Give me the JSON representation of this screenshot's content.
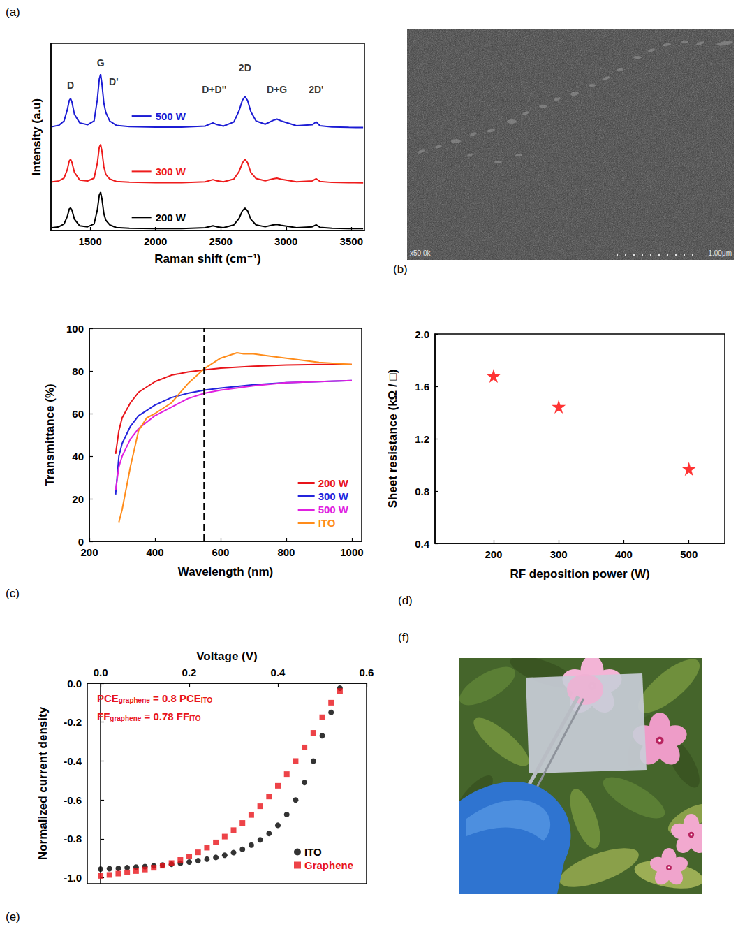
{
  "chart_data": [
    {
      "panel": "(a)",
      "type": "line",
      "x_label": "Raman shift (cm⁻¹)",
      "y_label": "Intensity (a.u)",
      "x": [
        1210,
        1260,
        1300,
        1325,
        1340,
        1350,
        1360,
        1380,
        1420,
        1480,
        1530,
        1555,
        1570,
        1580,
        1590,
        1605,
        1620,
        1650,
        1700,
        1800,
        2000,
        2200,
        2380,
        2440,
        2470,
        2520,
        2600,
        2640,
        2665,
        2685,
        2705,
        2730,
        2770,
        2840,
        2900,
        2930,
        2960,
        3080,
        3200,
        3230,
        3260,
        3350,
        3480,
        3590
      ],
      "series": [
        {
          "name": "200 W",
          "color": "#000000",
          "values": [
            0.15,
            0.2,
            0.35,
            0.75,
            1.15,
            1.2,
            1.1,
            0.6,
            0.25,
            0.2,
            0.35,
            1.1,
            1.9,
            2.05,
            1.7,
            0.9,
            0.55,
            0.3,
            0.16,
            0.12,
            0.1,
            0.1,
            0.15,
            0.25,
            0.2,
            0.15,
            0.3,
            0.65,
            1.05,
            1.2,
            1.05,
            0.6,
            0.3,
            0.2,
            0.3,
            0.33,
            0.28,
            0.15,
            0.2,
            0.3,
            0.17,
            0.12,
            0.1,
            0.1
          ]
        },
        {
          "name": "300 W",
          "color": "#ee1c1c",
          "values": [
            2.6,
            2.65,
            2.8,
            3.25,
            3.72,
            3.8,
            3.65,
            3.1,
            2.7,
            2.65,
            2.8,
            3.6,
            4.45,
            4.6,
            4.25,
            3.4,
            3.0,
            2.75,
            2.62,
            2.58,
            2.56,
            2.56,
            2.6,
            2.72,
            2.66,
            2.6,
            2.75,
            3.15,
            3.6,
            3.8,
            3.62,
            3.1,
            2.78,
            2.66,
            2.76,
            2.8,
            2.74,
            2.6,
            2.65,
            2.77,
            2.62,
            2.57,
            2.56,
            2.55
          ]
        },
        {
          "name": "500 W",
          "color": "#1c1cd4",
          "values": [
            5.55,
            5.62,
            5.85,
            6.45,
            6.95,
            7.05,
            6.88,
            6.2,
            5.75,
            5.65,
            5.85,
            7.0,
            8.1,
            8.35,
            7.85,
            6.8,
            6.3,
            5.85,
            5.62,
            5.55,
            5.52,
            5.52,
            5.58,
            5.75,
            5.66,
            5.58,
            5.8,
            6.4,
            6.95,
            7.15,
            6.95,
            6.35,
            5.85,
            5.68,
            5.88,
            5.95,
            5.86,
            5.6,
            5.65,
            5.8,
            5.6,
            5.53,
            5.51,
            5.5
          ]
        }
      ],
      "xlim": [
        1200,
        3600
      ],
      "xticks": [
        1500,
        2000,
        2500,
        3000,
        3500
      ],
      "ylim": [
        0,
        10
      ],
      "tick_labels": "x",
      "grid": false,
      "annotations": [
        {
          "text": "D",
          "x": 1350,
          "y": 7.75
        },
        {
          "text": "G",
          "x": 1580,
          "y": 8.95
        },
        {
          "text": "D'",
          "x": 1680,
          "y": 7.95
        },
        {
          "text": "D+D''",
          "x": 2450,
          "y": 7.55
        },
        {
          "text": "2D",
          "x": 2685,
          "y": 8.7
        },
        {
          "text": "D+G",
          "x": 2930,
          "y": 7.55
        },
        {
          "text": "2D'",
          "x": 3230,
          "y": 7.55
        }
      ]
    },
    {
      "panel": "(b)",
      "type": "image",
      "annotations": [
        "x50.0k",
        "1.00μm"
      ]
    },
    {
      "panel": "(c)",
      "type": "line",
      "x_label": "Wavelength (nm)",
      "y_label": "Transmittance (%)",
      "series": [
        {
          "name": "200 W",
          "color": "#e8141a",
          "x": [
            280,
            290,
            300,
            325,
            350,
            400,
            450,
            500,
            550,
            600,
            700,
            800,
            900,
            1000
          ],
          "values": [
            41,
            52,
            58,
            65,
            70,
            75,
            78,
            79.5,
            80.5,
            81.3,
            82.2,
            82.8,
            83,
            83
          ]
        },
        {
          "name": "300 W",
          "color": "#2424dc",
          "x": [
            280,
            290,
            300,
            325,
            350,
            400,
            450,
            500,
            550,
            600,
            700,
            800,
            900,
            1000
          ],
          "values": [
            22,
            40,
            46,
            54,
            59,
            64,
            67.5,
            69.5,
            71,
            72,
            73.5,
            74.5,
            75,
            75.5
          ]
        },
        {
          "name": "500 W",
          "color": "#e020e0",
          "x": [
            280,
            290,
            300,
            325,
            350,
            400,
            450,
            500,
            550,
            600,
            700,
            800,
            900,
            1000
          ],
          "values": [
            24,
            35,
            40,
            48,
            53,
            59,
            63,
            67,
            69.5,
            71,
            73,
            74.5,
            75,
            75.5
          ]
        },
        {
          "name": "ITO",
          "color": "#ff8c1a",
          "x": [
            290,
            300,
            325,
            350,
            375,
            400,
            450,
            500,
            550,
            600,
            650,
            670,
            700,
            750,
            800,
            900,
            1000
          ],
          "values": [
            9,
            15,
            35,
            52,
            58,
            60,
            65,
            74,
            81,
            86,
            88.5,
            88,
            88,
            87,
            86,
            84,
            83
          ]
        }
      ],
      "xlim": [
        200,
        1030
      ],
      "xticks": [
        200,
        400,
        600,
        800,
        1000
      ],
      "ylim": [
        0,
        100
      ],
      "yticks": [
        0,
        20,
        40,
        60,
        80,
        100
      ],
      "legend": "lower right",
      "grid": false,
      "reference_line": {
        "x": 550,
        "line_style": "dashed"
      }
    },
    {
      "panel": "(d)",
      "type": "scatter",
      "x_label": "RF deposition power (W)",
      "y_label": "Sheet resistance (kΩ / □)",
      "x": [
        200,
        300,
        500
      ],
      "values": [
        1.68,
        1.445,
        0.97
      ],
      "color": "#ff0000",
      "marker": "star",
      "xlim": [
        110,
        555
      ],
      "xticks": [
        200,
        300,
        400,
        500
      ],
      "ylim": [
        0.4,
        2.0
      ],
      "yticks": [
        0.4,
        0.8,
        1.2,
        1.6,
        {
          "value": 2,
          "label": "2.0"
        }
      ],
      "grid": false
    },
    {
      "panel": "(e)",
      "type": "scatter",
      "x_label": "Voltage (V)",
      "y_label": "Normalized current density",
      "series": [
        {
          "name": "ITO",
          "color": "#000000",
          "marker": "circle",
          "x": [
            0,
            0.02,
            0.04,
            0.06,
            0.08,
            0.1,
            0.12,
            0.14,
            0.16,
            0.18,
            0.2,
            0.22,
            0.24,
            0.26,
            0.28,
            0.3,
            0.32,
            0.34,
            0.36,
            0.38,
            0.4,
            0.42,
            0.44,
            0.46,
            0.48,
            0.5,
            0.52,
            0.54
          ],
          "values": [
            -0.955,
            -0.953,
            -0.951,
            -0.948,
            -0.945,
            -0.942,
            -0.938,
            -0.934,
            -0.93,
            -0.925,
            -0.919,
            -0.912,
            -0.904,
            -0.895,
            -0.884,
            -0.87,
            -0.853,
            -0.832,
            -0.805,
            -0.772,
            -0.73,
            -0.675,
            -0.6,
            -0.51,
            -0.4,
            -0.27,
            -0.15,
            -0.025
          ]
        },
        {
          "name": "Graphene",
          "color": "#e8141a",
          "marker": "square",
          "x": [
            0,
            0.02,
            0.04,
            0.06,
            0.08,
            0.1,
            0.12,
            0.14,
            0.16,
            0.18,
            0.2,
            0.22,
            0.24,
            0.26,
            0.28,
            0.3,
            0.32,
            0.34,
            0.36,
            0.38,
            0.4,
            0.42,
            0.44,
            0.46,
            0.48,
            0.5,
            0.52,
            0.54
          ],
          "values": [
            -0.99,
            -0.985,
            -0.978,
            -0.972,
            -0.965,
            -0.957,
            -0.948,
            -0.937,
            -0.924,
            -0.908,
            -0.89,
            -0.869,
            -0.845,
            -0.818,
            -0.788,
            -0.755,
            -0.718,
            -0.677,
            -0.632,
            -0.582,
            -0.527,
            -0.467,
            -0.4,
            -0.33,
            -0.255,
            -0.175,
            -0.1,
            -0.04
          ]
        }
      ],
      "xlim": [
        -0.03,
        0.6
      ],
      "xticks": [
        {
          "value": 0,
          "label": "0.0"
        },
        0.2,
        0.4,
        0.6
      ],
      "ylim": [
        -1.03,
        0
      ],
      "yticks": [
        {
          "value": -1,
          "label": "-1.0"
        },
        -0.8,
        -0.6,
        -0.4,
        -0.2,
        {
          "value": 0,
          "label": "0.0"
        }
      ],
      "legend": "lower right",
      "grid": false,
      "annotations": [
        {
          "color": "#e8141a",
          "parts": [
            {
              "text": "PCE"
            },
            {
              "sub": "graphene"
            },
            {
              "text": " = 0.8 PCE"
            },
            {
              "sub": "ITO"
            }
          ]
        },
        {
          "color": "#e8141a",
          "parts": [
            {
              "text": "FF"
            },
            {
              "sub": "graphene"
            },
            {
              "text": " = 0.78 FF"
            },
            {
              "sub": "ITO"
            }
          ]
        }
      ]
    },
    {
      "panel": "(f)",
      "type": "image"
    }
  ]
}
